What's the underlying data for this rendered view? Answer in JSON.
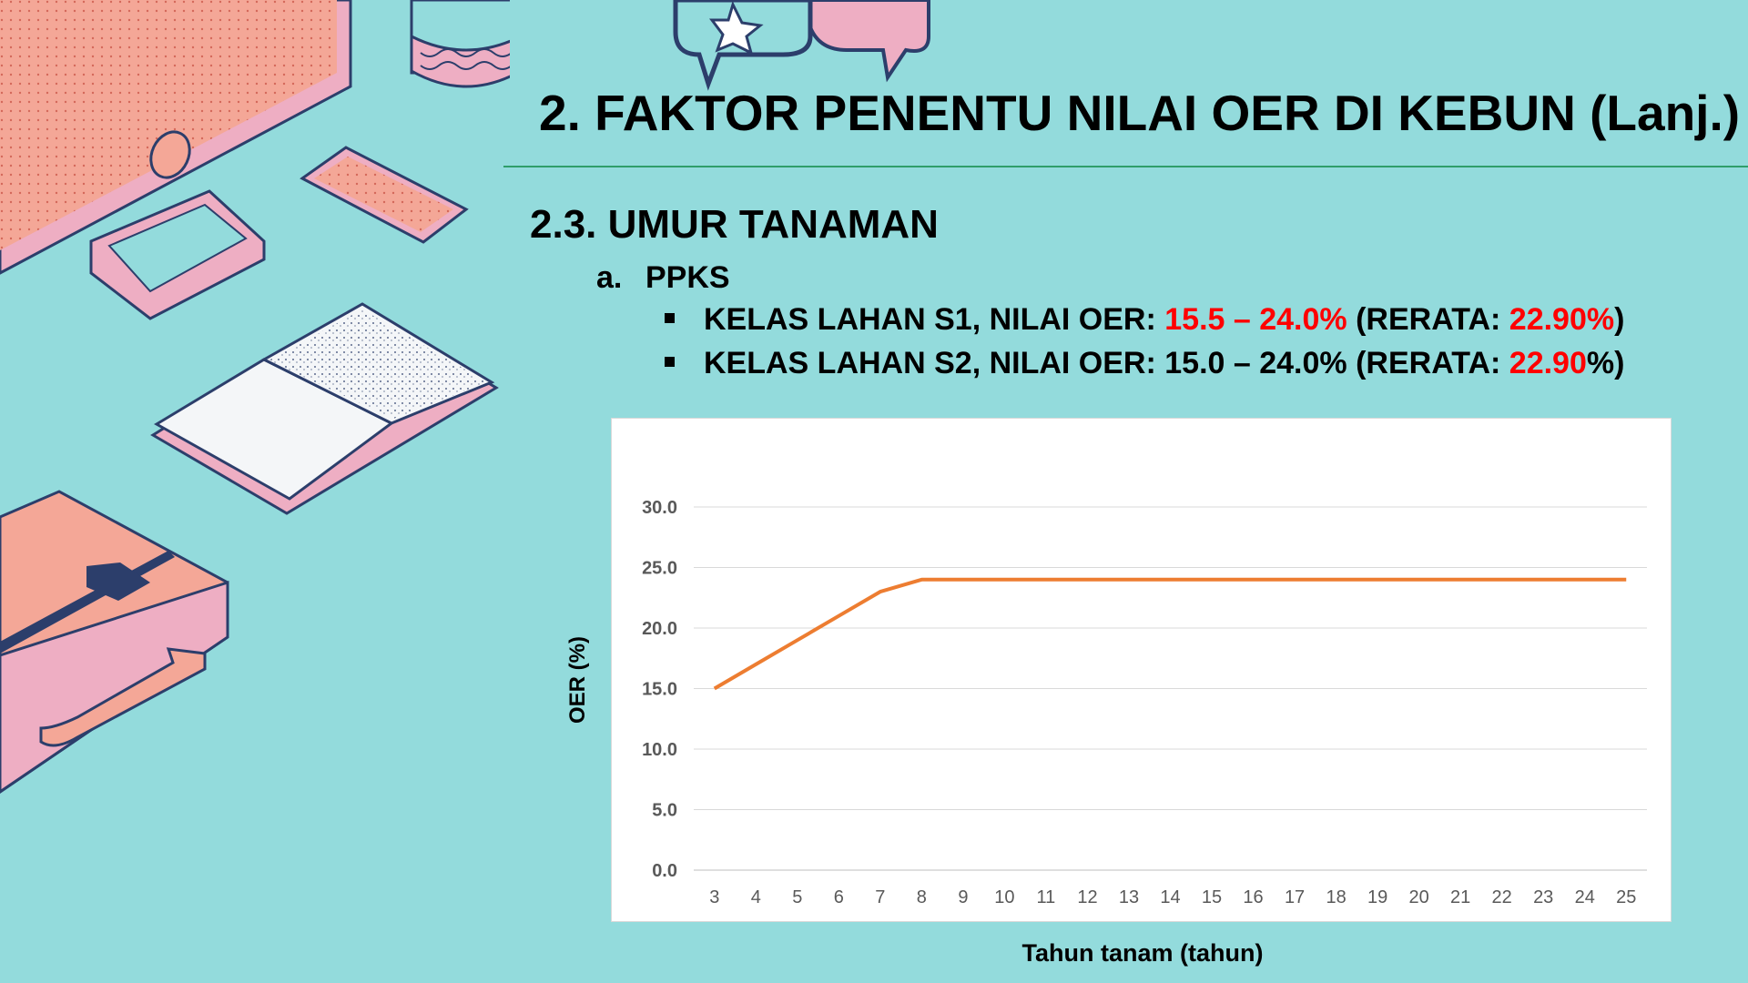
{
  "slide": {
    "title": "2. FAKTOR PENENTU NILAI OER DI KEBUN (Lanj.)",
    "section_heading": "2.3. UMUR TANAMAN",
    "sub_marker": "a.",
    "sub_heading": "PPKS",
    "bullets": [
      {
        "prefix": "KELAS LAHAN S1, NILAI OER: ",
        "range": "15.5 – 24.0%",
        "middle": " (RERATA: ",
        "average": "22.90%",
        "suffix": ")"
      },
      {
        "prefix": "KELAS LAHAN S2, NILAI OER: ",
        "range": "15.0 – 24.0%",
        "middle": " (RERATA: ",
        "average": "22.90",
        "suffix": "%)"
      }
    ],
    "highlight_color": "#ff0000",
    "background_color": "#93dbdc"
  },
  "chart_data": {
    "type": "line",
    "xlabel": "Tahun tanam (tahun)",
    "ylabel": "OER (%)",
    "ylim": [
      0,
      30
    ],
    "yticks": [
      "0.0",
      "5.0",
      "10.0",
      "15.0",
      "20.0",
      "25.0",
      "30.0"
    ],
    "x": [
      3,
      4,
      5,
      6,
      7,
      8,
      9,
      10,
      11,
      12,
      13,
      14,
      15,
      16,
      17,
      18,
      19,
      20,
      21,
      22,
      23,
      24,
      25
    ],
    "series": [
      {
        "values": [
          15.0,
          17.0,
          19.0,
          21.0,
          23.0,
          24.0,
          24.0,
          24.0,
          24.0,
          24.0,
          24.0,
          24.0,
          24.0,
          24.0,
          24.0,
          24.0,
          24.0,
          24.0,
          24.0,
          24.0,
          24.0,
          24.0,
          24.0
        ],
        "color": "#ed7d31"
      }
    ],
    "grid": true,
    "legend": "none"
  }
}
